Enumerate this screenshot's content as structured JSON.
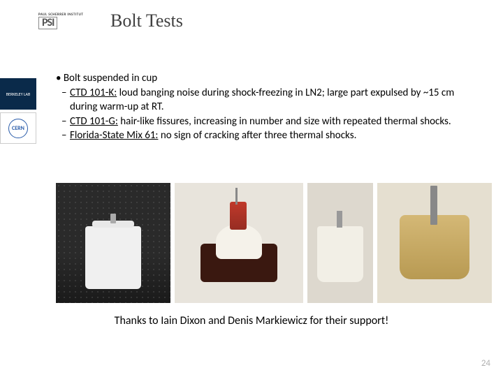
{
  "header": {
    "institute": "PAUL SCHERRER INSTITUT",
    "logo_mark": "PSI",
    "title": "Bolt Tests"
  },
  "side": {
    "lbl": "BERKELEY LAB",
    "cern": "CERN"
  },
  "bullets": {
    "main": "Bolt suspended in cup",
    "sub1_label": "CTD 101-K:",
    "sub1_text": " loud banging noise during shock-freezing in LN2; large part expulsed by ~15 cm during warm-up at RT.",
    "sub2_label": "CTD 101-G:",
    "sub2_text": " hair-like fissures, increasing in number and size with repeated thermal shocks.",
    "sub3_label": "Florida-State Mix 61:",
    "sub3_text": " no sign of cracking after three thermal shocks."
  },
  "thanks": "Thanks to Iain Dixon and Denis Markiewicz for their support!",
  "page_number": "24",
  "colors": {
    "title": "#404040",
    "text": "#000000",
    "page_num": "#b0b0b0",
    "lbl_bg": "#0a2a4a",
    "cern_fg": "#2a5caa"
  }
}
